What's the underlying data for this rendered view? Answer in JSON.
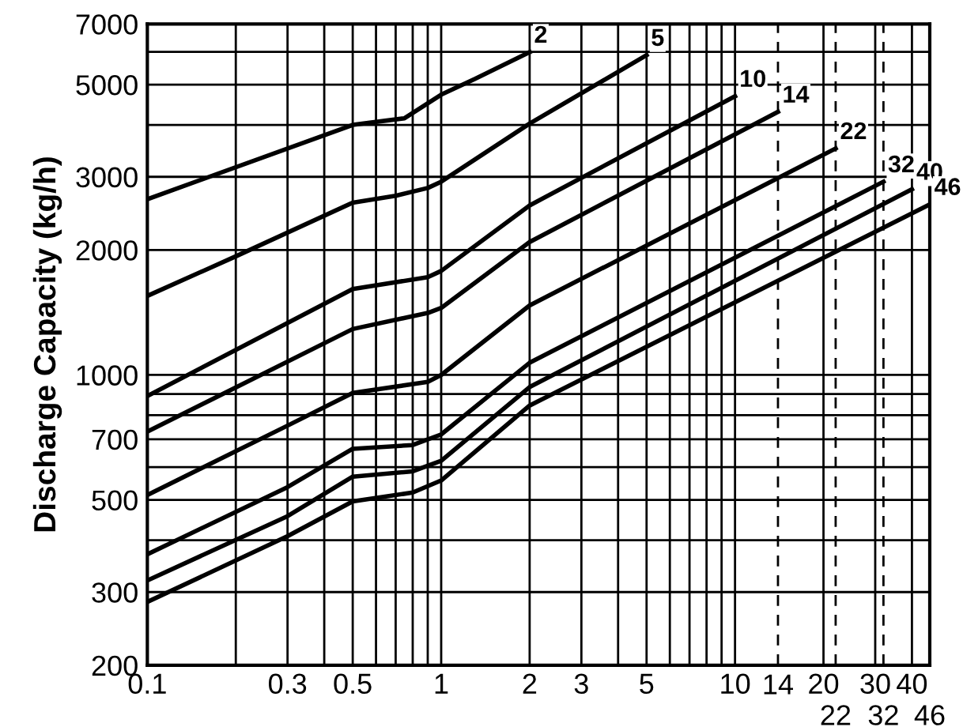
{
  "chart_data": {
    "type": "line",
    "ylabel": "Discharge Capacity (kg/h)",
    "log": "xy",
    "grid": true,
    "marker": "none",
    "line_style": "solid",
    "xlim": [
      0.1,
      46
    ],
    "ylim": [
      200,
      7000
    ],
    "xticks": [
      0.1,
      {
        "value": 0.2,
        "label": null
      },
      {
        "value": 0.3,
        "label": "0.3"
      },
      {
        "value": 0.4,
        "label": null
      },
      0.5,
      {
        "value": 0.6,
        "label": null
      },
      {
        "value": 0.7,
        "label": null
      },
      {
        "value": 0.8,
        "label": null
      },
      {
        "value": 0.9,
        "label": null
      },
      1,
      2,
      3,
      {
        "value": 4,
        "label": null
      },
      5,
      {
        "value": 6,
        "label": null
      },
      {
        "value": 7,
        "label": null
      },
      {
        "value": 8,
        "label": null
      },
      {
        "value": 9,
        "label": null
      },
      10,
      20,
      30,
      40
    ],
    "yticks": [
      200,
      300,
      {
        "value": 400,
        "label": null
      },
      500,
      {
        "value": 600,
        "label": null
      },
      700,
      {
        "value": 800,
        "label": null
      },
      {
        "value": 900,
        "label": null
      },
      1000,
      2000,
      3000,
      {
        "value": 4000,
        "label": null
      },
      5000,
      {
        "value": 6000,
        "label": null
      },
      7000
    ],
    "ref_lines": [
      {
        "axis": "x",
        "value": 14,
        "label": "14",
        "line_style": "dashed",
        "color": "#000000"
      },
      {
        "axis": "x",
        "value": 22,
        "label": "22",
        "line_style": "dashed",
        "color": "#000000"
      },
      {
        "axis": "x",
        "value": 32,
        "label": "32",
        "line_style": "dashed",
        "color": "#000000"
      },
      {
        "axis": "x",
        "value": 46,
        "label": "46",
        "line_style": "solid",
        "color": "#000000"
      }
    ],
    "series": [
      {
        "name": "2",
        "color": "#000000",
        "x": [
          0.1,
          0.5,
          0.75,
          1,
          1.3,
          2
        ],
        "values": [
          2650,
          4000,
          4150,
          4730,
          5160,
          5990
        ]
      },
      {
        "name": "5",
        "color": "#000000",
        "x": [
          0.1,
          0.2,
          0.5,
          0.7,
          0.9,
          1,
          2,
          5
        ],
        "values": [
          1550,
          1930,
          2600,
          2700,
          2820,
          2920,
          4030,
          5890
        ]
      },
      {
        "name": "10",
        "color": "#000000",
        "x": [
          0.1,
          0.5,
          0.9,
          1,
          2,
          10
        ],
        "values": [
          890,
          1610,
          1720,
          1780,
          2560,
          4690
        ]
      },
      {
        "name": "14",
        "color": "#000000",
        "x": [
          0.1,
          0.5,
          0.9,
          1,
          2,
          14
        ],
        "values": [
          730,
          1290,
          1410,
          1450,
          2090,
          4300
        ]
      },
      {
        "name": "22",
        "color": "#000000",
        "x": [
          0.1,
          0.3,
          0.5,
          0.9,
          1,
          2,
          22
        ],
        "values": [
          514,
          755,
          905,
          962,
          1000,
          1470,
          3510
        ]
      },
      {
        "name": "32",
        "color": "#000000",
        "x": [
          0.1,
          0.3,
          0.5,
          0.8,
          1,
          2,
          32
        ],
        "values": [
          370,
          537,
          664,
          678,
          719,
          1070,
          2920
        ]
      },
      {
        "name": "40",
        "color": "#000000",
        "x": [
          0.1,
          0.3,
          0.5,
          0.8,
          1,
          2,
          40
        ],
        "values": [
          320,
          457,
          569,
          586,
          621,
          935,
          2800
        ]
      },
      {
        "name": "46",
        "color": "#000000",
        "x": [
          0.1,
          0.3,
          0.5,
          0.8,
          1,
          2,
          46
        ],
        "values": [
          284,
          409,
          496,
          521,
          557,
          844,
          2575
        ]
      }
    ]
  }
}
